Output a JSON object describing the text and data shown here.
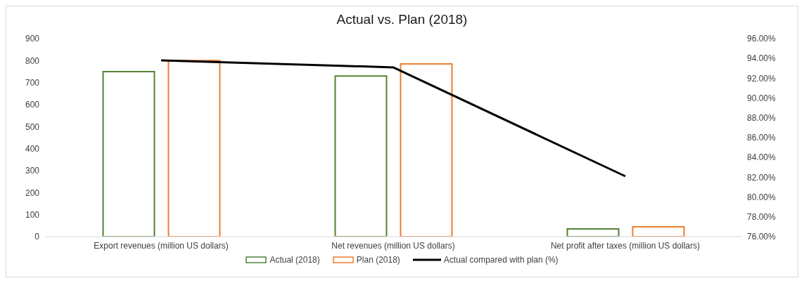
{
  "chart_data": {
    "type": "bar",
    "title": "Actual vs. Plan (2018)",
    "categories": [
      "Export revenues (million US dollars)",
      "Net revenues (million US dollars)",
      "Net profit after taxes (million US dollars)"
    ],
    "series": [
      {
        "name": "Actual (2018)",
        "color": "#548235",
        "values": [
          750,
          730,
          35
        ]
      },
      {
        "name": "Plan (2018)",
        "color": "#ed7d31",
        "values": [
          800,
          785,
          45
        ]
      },
      {
        "name": "Actual compared with plan (%)",
        "type": "line",
        "axis": "y2",
        "color": "#000000",
        "values": [
          93.8,
          93.1,
          82.1
        ]
      }
    ],
    "ylim": [
      0,
      900
    ],
    "yticks": [
      0,
      100,
      200,
      300,
      400,
      500,
      600,
      700,
      800,
      900
    ],
    "y2lim": [
      76,
      96
    ],
    "y2ticks": [
      {
        "value": 76,
        "label": "76.00%"
      },
      {
        "value": 78,
        "label": "78.00%"
      },
      {
        "value": 80,
        "label": "80.00%"
      },
      {
        "value": 82,
        "label": "82.00%"
      },
      {
        "value": 84,
        "label": "84.00%"
      },
      {
        "value": 86,
        "label": "86.00%"
      },
      {
        "value": 88,
        "label": "88.00%"
      },
      {
        "value": 90,
        "label": "90.00%"
      },
      {
        "value": 92,
        "label": "92.00%"
      },
      {
        "value": 94,
        "label": "94.00%"
      },
      {
        "value": 96,
        "label": "96.00%"
      }
    ],
    "grid": false,
    "legend": "bottom",
    "marker": "none",
    "line_style": "solid"
  }
}
